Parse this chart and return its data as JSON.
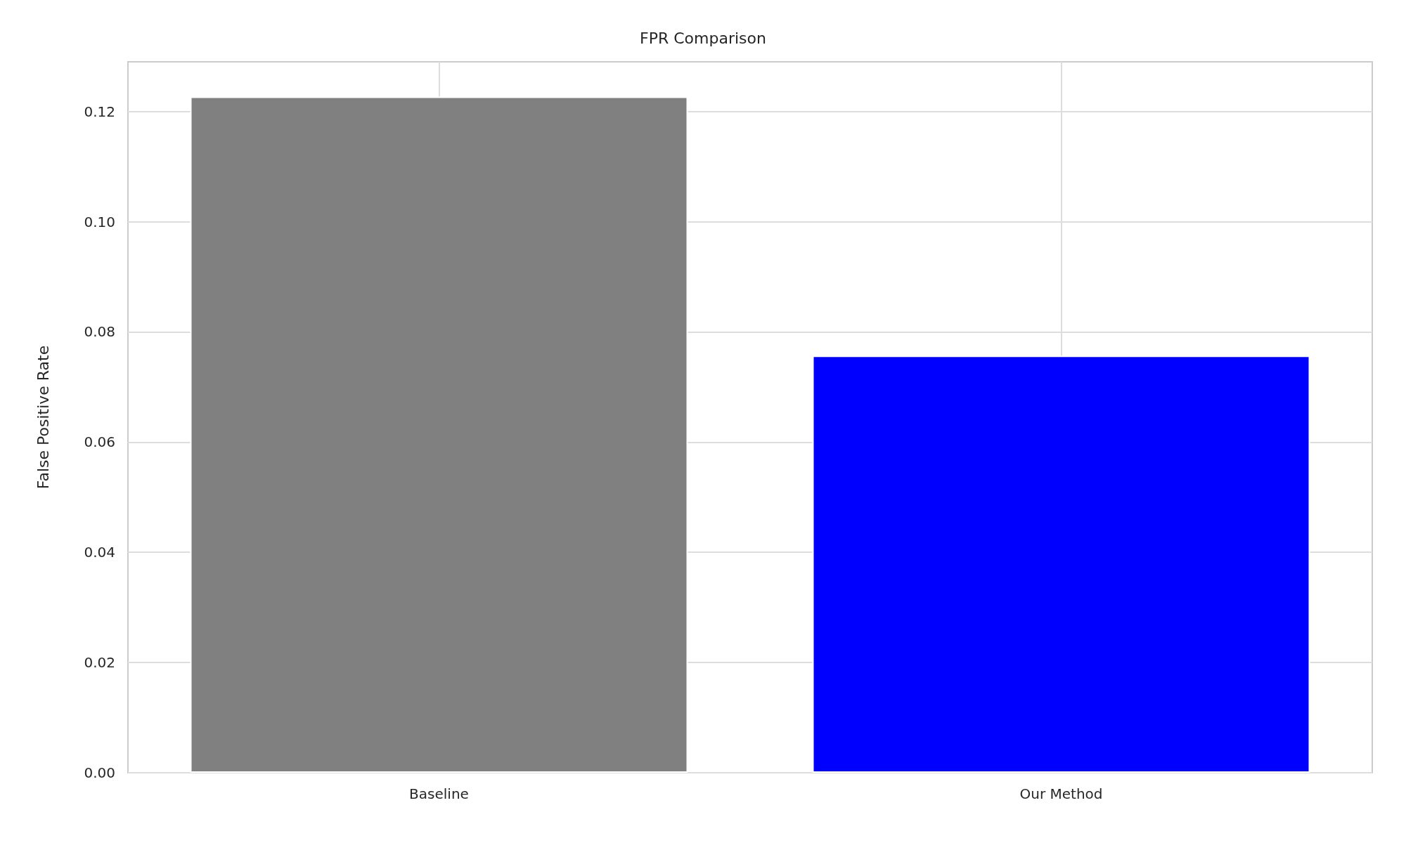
{
  "chart_data": {
    "type": "bar",
    "title": "FPR Comparison",
    "ylabel": "False Positive Rate",
    "categories": [
      "Baseline",
      "Our Method"
    ],
    "values": [
      0.1227,
      0.0757
    ],
    "colors": [
      "#808080",
      "#0000ff"
    ],
    "ylim": [
      0,
      0.129
    ],
    "yticks": [
      {
        "value": 0,
        "label": "0.00"
      },
      {
        "value": 0.02,
        "label": "0.02"
      },
      {
        "value": 0.04,
        "label": "0.04"
      },
      {
        "value": 0.06,
        "label": "0.06"
      },
      {
        "value": 0.08,
        "label": "0.08"
      },
      {
        "value": 0.1,
        "label": "0.10"
      },
      {
        "value": 0.12,
        "label": "0.12"
      }
    ],
    "grid": true
  }
}
